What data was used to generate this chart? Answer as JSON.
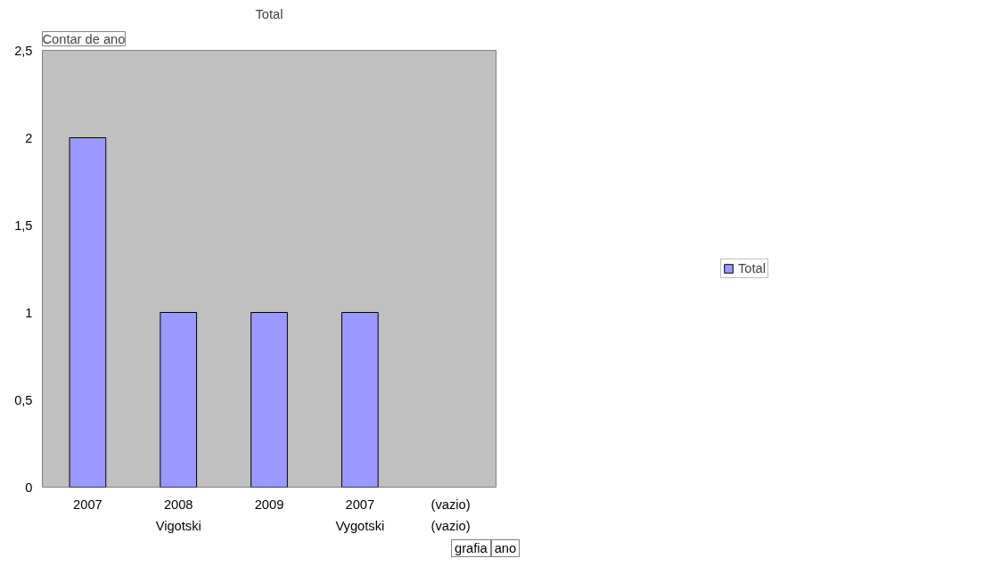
{
  "chart_data": {
    "type": "bar",
    "title": "Total",
    "ylabel": "Contar de ano",
    "categories": [
      "2007",
      "2008",
      "2009",
      "2007",
      "(vazio)"
    ],
    "series": [
      {
        "name": "Total",
        "color": "#9999ff",
        "values": [
          2,
          1,
          1,
          1,
          null
        ]
      }
    ],
    "ylim": [
      0,
      2.5
    ],
    "yticks": [
      0,
      {
        "value": 0.5,
        "label": "0,5"
      },
      1,
      {
        "value": 1.5,
        "label": "1,5"
      },
      2,
      {
        "value": 2.5,
        "label": "2,5"
      }
    ],
    "grid": false,
    "legend": "right",
    "annotations": [
      "Vigotski",
      "Vygotski",
      "(vazio)",
      "grafia",
      "ano"
    ]
  }
}
